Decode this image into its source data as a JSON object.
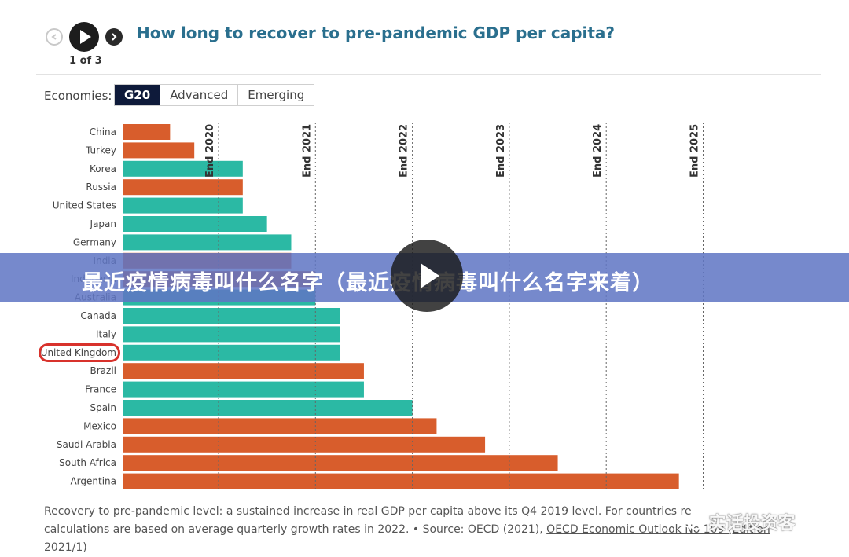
{
  "header": {
    "title": "How long to recover to pre-pandemic GDP per capita?",
    "page_counter": "1 of 3",
    "prev_icon": "undo-arrow-icon",
    "play_icon": "play-icon",
    "next_icon": "redo-arrow-icon"
  },
  "controls": {
    "label": "Economies:",
    "options": [
      "G20",
      "Advanced",
      "Emerging"
    ],
    "selected": "G20"
  },
  "colors": {
    "advanced": "#2bb9a4",
    "emerging": "#d85d2c",
    "highlight": "#d8322c",
    "title": "#2a6f8e"
  },
  "chart_data": {
    "type": "bar",
    "orientation": "horizontal",
    "categories": [
      "China",
      "Turkey",
      "Korea",
      "Russia",
      "United States",
      "Japan",
      "Germany",
      "India",
      "Indonesia",
      "Australia",
      "Canada",
      "Italy",
      "United Kingdom",
      "Brazil",
      "France",
      "Spain",
      "Mexico",
      "Saudi Arabia",
      "South Africa",
      "Argentina"
    ],
    "values": [
      "2020-Q2",
      "2020-Q3",
      "2021-Q1",
      "2021-Q1",
      "2021-Q1",
      "2021-Q2",
      "2021-Q3",
      "2021-Q3",
      "2021-Q4",
      "2021-Q4",
      "2022-Q1",
      "2022-Q1",
      "2022-Q1",
      "2022-Q2",
      "2022-Q2",
      "2022-Q4",
      "2023-Q1",
      "2023-Q3",
      "2024-Q2",
      "2025-Q3"
    ],
    "group": [
      "emerging",
      "emerging",
      "advanced",
      "emerging",
      "advanced",
      "advanced",
      "advanced",
      "emerging",
      "emerging",
      "advanced",
      "advanced",
      "advanced",
      "advanced",
      "emerging",
      "advanced",
      "advanced",
      "emerging",
      "emerging",
      "emerging",
      "emerging"
    ],
    "reference_lines": [
      "End 2020",
      "End 2021",
      "End 2022",
      "End 2023",
      "End 2024",
      "End 2025"
    ],
    "highlighted_category": "United Kingdom",
    "legend": "none",
    "grid": false
  },
  "footnote": {
    "line1": "Recovery to pre-pandemic level: a sustained increase in real GDP per capita above its Q4 2019 level. For countries re",
    "line2_prefix": "calculations are based on average quarterly growth rates in 2022. • Source: OECD (2021), ",
    "link": "OECD Economic Outlook No 109 (Edition 2021/1)"
  },
  "overlay": {
    "banner_text": "最近疫情病毒叫什么名字（最近疫情病毒叫什么名字来着）",
    "watermark_text": "实话投资客",
    "watermark_icon": "wechat-icon",
    "center_play_icon": "play-icon"
  }
}
